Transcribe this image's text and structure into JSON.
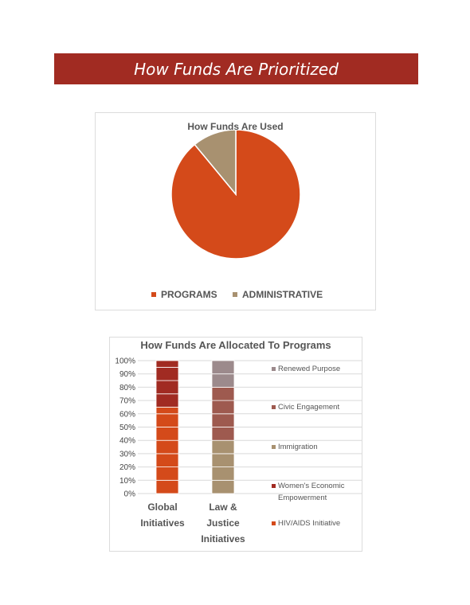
{
  "banner": {
    "title": "How Funds Are Prioritized"
  },
  "chart_data": [
    {
      "type": "pie",
      "title": "How Funds Are Used",
      "labels": [
        "PROGRAMS",
        "ADMINISTRATIVE"
      ],
      "values": [
        89,
        11
      ],
      "colors": [
        "#d44a1a",
        "#a89170"
      ],
      "legend": "bottom"
    },
    {
      "type": "bar",
      "stacked": "100%",
      "title": "How Funds Are Allocated To Programs",
      "categories": [
        [
          "Global",
          "Initiatives"
        ],
        [
          "Law &",
          "Justice",
          "Initiatives"
        ]
      ],
      "series": [
        {
          "name": "HIV/AIDS Initiative",
          "color": "#d44a1a",
          "values": [
            65,
            0
          ]
        },
        {
          "name": "Women's Economic Empowerment",
          "color": "#a12b22",
          "values": [
            35,
            0
          ]
        },
        {
          "name": "Immigration",
          "color": "#a89170",
          "values": [
            0,
            40
          ]
        },
        {
          "name": "Civic Engagement",
          "color": "#9e5a4f",
          "values": [
            0,
            40
          ]
        },
        {
          "name": "Renewed Purpose",
          "color": "#9c8a8c",
          "values": [
            0,
            20
          ]
        }
      ],
      "ylim": [
        0,
        100
      ],
      "yticks": [
        "0%",
        "10%",
        "20%",
        "30%",
        "40%",
        "50%",
        "60%",
        "70%",
        "80%",
        "90%",
        "100%"
      ],
      "legend": "right"
    }
  ]
}
